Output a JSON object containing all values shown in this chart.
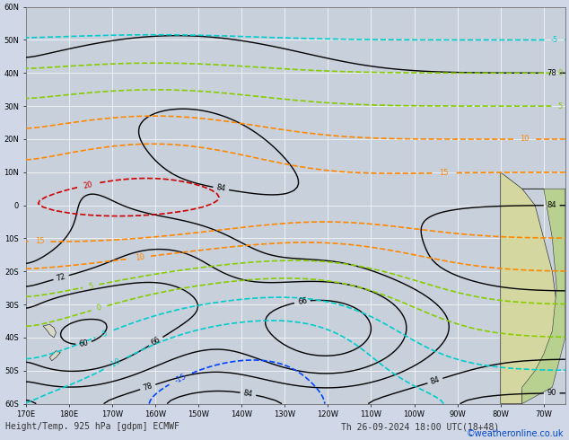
{
  "title_left": "Height/Temp. 925 hPa [gdpm] ECMWF",
  "title_right": "Th 26-09-2024 18:00 UTC(18+48)",
  "copyright": "©weatheronline.co.uk",
  "background_color": "#d0d8e8",
  "map_background": "#c8d0dc",
  "land_color": "#e8e8e8",
  "grid_color": "#ffffff",
  "lon_min": -190,
  "lon_max": -65,
  "lat_min": -60,
  "lat_max": 60,
  "figsize": [
    6.34,
    4.9
  ],
  "dpi": 100,
  "xlabel_color": "#333333",
  "ylabel_color": "#333333",
  "font_size_title": 7,
  "font_size_axis": 6,
  "font_size_copyright": 7,
  "contour_colors": {
    "height": "#000000",
    "temp_red": "#cc0000",
    "temp_orange": "#ff8800",
    "temp_yellow_green": "#88cc00",
    "temp_cyan": "#00cccc",
    "temp_blue": "#0044ff",
    "temp_purple": "#8800cc",
    "temp_pink": "#ff44cc"
  }
}
